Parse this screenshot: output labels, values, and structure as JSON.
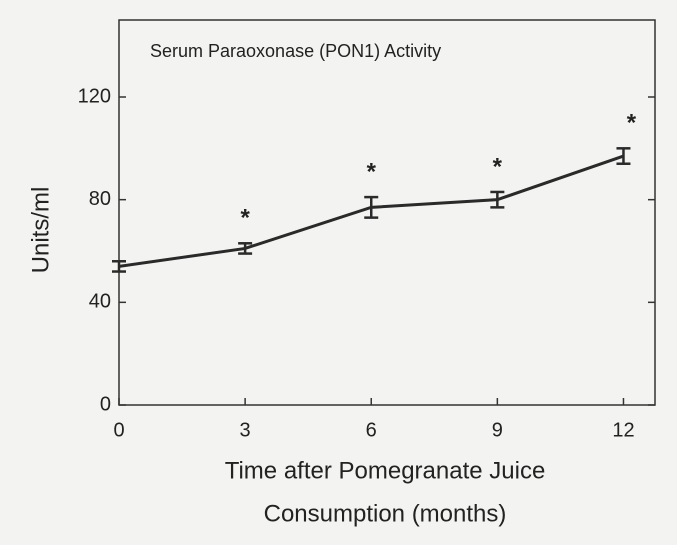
{
  "chart_data": {
    "type": "line",
    "title": "Serum Paraoxonase (PON1) Activity",
    "xlabel": [
      "Time after Pomegranate Juice",
      "Consumption (months)"
    ],
    "ylabel": "Units/ml",
    "x": [
      0,
      3,
      6,
      9,
      12
    ],
    "series": [
      {
        "name": "PON1",
        "color": "#2a2a2a",
        "values": [
          54,
          61,
          77,
          80,
          97
        ],
        "errors": [
          2,
          2,
          4,
          3,
          3
        ]
      }
    ],
    "annotations": [
      {
        "text": "*",
        "x": 3
      },
      {
        "text": "*",
        "x": 6
      },
      {
        "text": "*",
        "x": 9
      },
      {
        "text": "*",
        "x": 12
      }
    ],
    "xlim": [
      0,
      12.75
    ],
    "ylim": [
      0,
      150
    ],
    "xticks": [
      0,
      3,
      6,
      9,
      12
    ],
    "yticks": [
      0,
      40,
      80,
      120
    ]
  }
}
